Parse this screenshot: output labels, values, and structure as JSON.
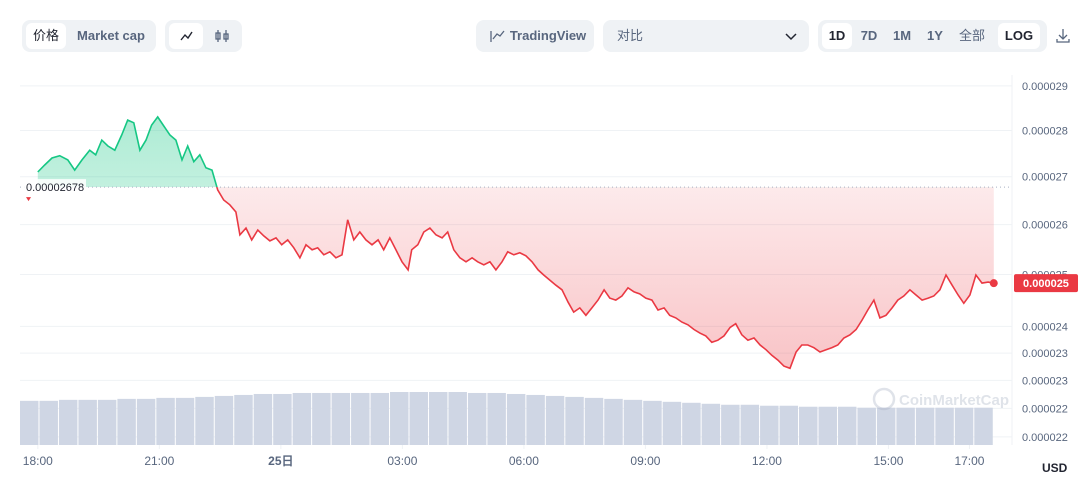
{
  "toolbar": {
    "chart_types": [
      "价格",
      "Market cap"
    ],
    "tradingview": "TradingView",
    "compare": "对比",
    "ranges": [
      "1D",
      "7D",
      "1M",
      "1Y",
      "全部"
    ],
    "log": "LOG"
  },
  "currency": "USD",
  "watermark": "CoinMarketCap",
  "chart_data": {
    "type": "line",
    "log_scale": true,
    "grid": true,
    "up_color": "#16c784",
    "down_color": "#ea3943",
    "baseline": 2.678e-05,
    "current_price": {
      "value": 2.483e-05,
      "label": "0.000025"
    },
    "xlim": [
      -0.44,
      24.05
    ],
    "xticks": [
      {
        "value": 0,
        "label": "18:00"
      },
      {
        "value": 3,
        "label": "21:00"
      },
      {
        "value": 6,
        "label": "25日"
      },
      {
        "value": 9,
        "label": "03:00"
      },
      {
        "value": 12,
        "label": "06:00"
      },
      {
        "value": 15,
        "label": "09:00"
      },
      {
        "value": 18,
        "label": "12:00"
      },
      {
        "value": 21,
        "label": "15:00"
      },
      {
        "value": 23,
        "label": "17:00"
      }
    ],
    "ylim": [
      2.186e-05,
      2.925e-05
    ],
    "yticks": [
      2.9e-05,
      2.8e-05,
      2.7e-05,
      2.6e-05,
      2.5e-05,
      2.4e-05,
      {
        "value": 2.35e-05,
        "label": "0.000023"
      },
      2.3e-05,
      {
        "value": 2.25e-05,
        "label": "0.000022"
      },
      2.2e-05
    ],
    "x": [
      0.0,
      0.17,
      0.35,
      0.54,
      0.74,
      0.91,
      1.09,
      1.28,
      1.43,
      1.58,
      1.73,
      1.9,
      2.07,
      2.22,
      2.37,
      2.52,
      2.67,
      2.81,
      2.96,
      3.11,
      3.26,
      3.41,
      3.56,
      3.7,
      3.85,
      4.0,
      4.15,
      4.3,
      4.44,
      4.59,
      4.74,
      4.89,
      4.99,
      5.14,
      5.28,
      5.43,
      5.58,
      5.73,
      5.88,
      6.02,
      6.17,
      6.32,
      6.47,
      6.62,
      6.77,
      6.91,
      7.06,
      7.21,
      7.36,
      7.51,
      7.65,
      7.8,
      7.95,
      8.1,
      8.25,
      8.4,
      8.54,
      8.69,
      8.84,
      8.99,
      9.14,
      9.23,
      9.38,
      9.53,
      9.68,
      9.83,
      9.98,
      10.12,
      10.27,
      10.42,
      10.57,
      10.72,
      10.86,
      11.01,
      11.16,
      11.31,
      11.46,
      11.6,
      11.75,
      11.9,
      12.05,
      12.2,
      12.35,
      12.49,
      12.64,
      12.79,
      12.94,
      13.09,
      13.23,
      13.38,
      13.53,
      13.68,
      13.83,
      13.98,
      14.12,
      14.27,
      14.42,
      14.57,
      14.72,
      14.86,
      15.01,
      15.16,
      15.31,
      15.46,
      15.6,
      15.75,
      15.9,
      16.05,
      16.2,
      16.35,
      16.49,
      16.64,
      16.79,
      16.94,
      17.09,
      17.23,
      17.38,
      17.53,
      17.68,
      17.83,
      17.98,
      18.12,
      18.27,
      18.42,
      18.57,
      18.72,
      18.86,
      19.01,
      19.16,
      19.31,
      19.46,
      19.6,
      19.75,
      19.9,
      20.05,
      20.2,
      20.35,
      20.49,
      20.64,
      20.79,
      20.94,
      21.09,
      21.23,
      21.38,
      21.53,
      21.68,
      21.83,
      21.98,
      22.12,
      22.27,
      22.42,
      22.57,
      22.72,
      22.86,
      23.01,
      23.16,
      23.31,
      23.46,
      23.6
    ],
    "values": [
      2.71e-05,
      2.725e-05,
      2.74e-05,
      2.745e-05,
      2.736e-05,
      2.714e-05,
      2.736e-05,
      2.757e-05,
      2.747e-05,
      2.779e-05,
      2.766e-05,
      2.757e-05,
      2.79e-05,
      2.823e-05,
      2.817e-05,
      2.757e-05,
      2.779e-05,
      2.812e-05,
      2.83e-05,
      2.81e-05,
      2.79e-05,
      2.779e-05,
      2.736e-05,
      2.766e-05,
      2.732e-05,
      2.747e-05,
      2.719e-05,
      2.714e-05,
      2.672e-05,
      2.651e-05,
      2.641e-05,
      2.626e-05,
      2.579e-05,
      2.593e-05,
      2.569e-05,
      2.589e-05,
      2.577e-05,
      2.567e-05,
      2.573e-05,
      2.559e-05,
      2.569e-05,
      2.553e-05,
      2.533e-05,
      2.559e-05,
      2.549e-05,
      2.553e-05,
      2.539e-05,
      2.545e-05,
      2.533e-05,
      2.539e-05,
      2.61e-05,
      2.569e-05,
      2.585e-05,
      2.569e-05,
      2.559e-05,
      2.569e-05,
      2.549e-05,
      2.573e-05,
      2.549e-05,
      2.525e-05,
      2.509e-05,
      2.549e-05,
      2.559e-05,
      2.585e-05,
      2.593e-05,
      2.579e-05,
      2.573e-05,
      2.585e-05,
      2.549e-05,
      2.533e-05,
      2.525e-05,
      2.533e-05,
      2.525e-05,
      2.519e-05,
      2.525e-05,
      2.509e-05,
      2.525e-05,
      2.545e-05,
      2.539e-05,
      2.543e-05,
      2.537e-05,
      2.525e-05,
      2.509e-05,
      2.499e-05,
      2.489e-05,
      2.479e-05,
      2.47e-05,
      2.446e-05,
      2.427e-05,
      2.435e-05,
      2.421e-05,
      2.435e-05,
      2.45e-05,
      2.47e-05,
      2.454e-05,
      2.45e-05,
      2.458e-05,
      2.474e-05,
      2.466e-05,
      2.462e-05,
      2.454e-05,
      2.45e-05,
      2.431e-05,
      2.435e-05,
      2.421e-05,
      2.416e-05,
      2.408e-05,
      2.403e-05,
      2.394e-05,
      2.387e-05,
      2.382e-05,
      2.37e-05,
      2.374e-05,
      2.382e-05,
      2.398e-05,
      2.405e-05,
      2.384e-05,
      2.374e-05,
      2.378e-05,
      2.365e-05,
      2.356e-05,
      2.346e-05,
      2.337e-05,
      2.326e-05,
      2.322e-05,
      2.352e-05,
      2.365e-05,
      2.365e-05,
      2.36e-05,
      2.352e-05,
      2.356e-05,
      2.36e-05,
      2.365e-05,
      2.378e-05,
      2.384e-05,
      2.394e-05,
      2.412e-05,
      2.431e-05,
      2.45e-05,
      2.416e-05,
      2.421e-05,
      2.435e-05,
      2.45e-05,
      2.458e-05,
      2.47e-05,
      2.46e-05,
      2.45e-05,
      2.454e-05,
      2.458e-05,
      2.47e-05,
      2.499e-05,
      2.479e-05,
      2.46e-05,
      2.444e-05,
      2.46e-05,
      2.499e-05,
      2.483e-05,
      2.485e-05,
      2.483e-05
    ],
    "volume": {
      "color": "#cfd6e4",
      "values": [
        45,
        45,
        46,
        46,
        46,
        47,
        47,
        48,
        48,
        49,
        50,
        51,
        52,
        52,
        53,
        53,
        53,
        53,
        53,
        54,
        54,
        54,
        54,
        53,
        53,
        52,
        51,
        50,
        49,
        48,
        47,
        46,
        45,
        44,
        43,
        42,
        41,
        41,
        40,
        40,
        39,
        39,
        39,
        38,
        38,
        38,
        38,
        38,
        38,
        38
      ]
    }
  }
}
